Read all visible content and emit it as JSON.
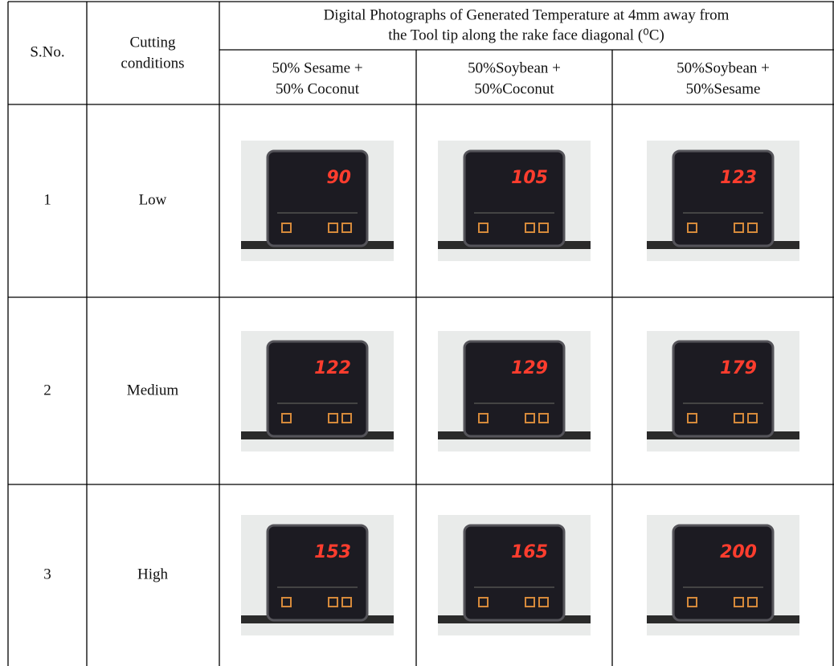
{
  "table": {
    "header": {
      "sno": "S.No.",
      "cutting": [
        "Cutting",
        "conditions"
      ],
      "span": [
        "Digital Photographs of Generated Temperature at 4mm away from",
        "the Tool tip along the  rake face diagonal (⁰C)"
      ],
      "columns": [
        [
          "50% Sesame +",
          "50% Coconut"
        ],
        [
          "50%Soybean +",
          "50%Coconut"
        ],
        [
          "50%Soybean +",
          "50%Sesame"
        ]
      ]
    },
    "rows": [
      {
        "sno": "1",
        "condition": "Low",
        "readings": [
          "90",
          "105",
          "123"
        ]
      },
      {
        "sno": "2",
        "condition": "Medium",
        "readings": [
          "122",
          "129",
          "179"
        ]
      },
      {
        "sno": "3",
        "condition": "High",
        "readings": [
          "153",
          "165",
          "200"
        ]
      }
    ]
  }
}
